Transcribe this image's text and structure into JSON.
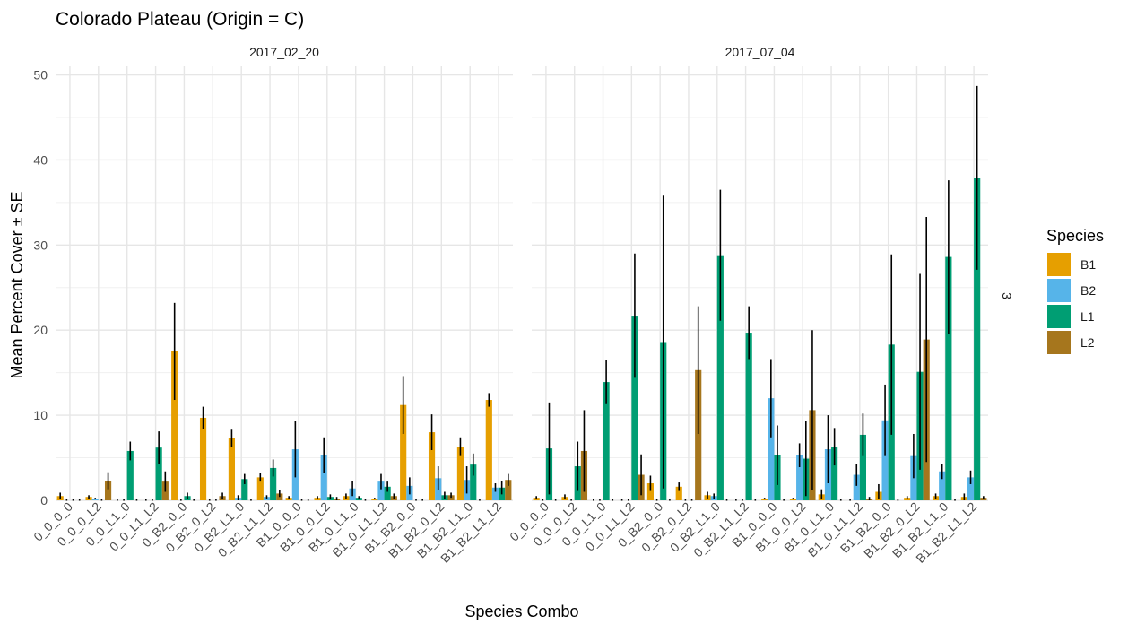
{
  "chart_data": {
    "type": "bar",
    "title": "Colorado Plateau (Origin = C)",
    "xlabel": "Species Combo",
    "ylabel": "Mean Percent Cover ± SE",
    "ylim": [
      0,
      51
    ],
    "yticks": [
      0,
      10,
      20,
      30,
      40,
      50
    ],
    "grid": true,
    "legend": {
      "title": "Species",
      "position": "right"
    },
    "facet_row_label": "3",
    "series_names": [
      "B1",
      "B2",
      "L1",
      "L2"
    ],
    "colors": {
      "B1": "#E69F00",
      "B2": "#56B4E9",
      "L1": "#009E73",
      "L2": "#A6761D"
    },
    "categories": [
      "0_0_0_0",
      "0_0_0_L2",
      "0_0_L1_0",
      "0_0_L1_L2",
      "0_B2_0_0",
      "0_B2_0_L2",
      "0_B2_L1_0",
      "0_B2_L1_L2",
      "B1_0_0_0",
      "B1_0_0_L2",
      "B1_0_L1_0",
      "B1_0_L1_L2",
      "B1_B2_0_0",
      "B1_B2_0_L2",
      "B1_B2_L1_0",
      "B1_B2_L1_L2"
    ],
    "panels": [
      {
        "label": "2017_02_20",
        "values": [
          [
            0.5,
            0,
            0,
            0
          ],
          [
            0.4,
            0.2,
            0,
            2.3
          ],
          [
            0,
            0,
            5.8,
            0
          ],
          [
            0,
            0,
            6.2,
            2.2
          ],
          [
            17.5,
            0,
            0.5,
            0
          ],
          [
            9.7,
            0,
            0,
            0.5
          ],
          [
            7.3,
            0.3,
            2.5,
            0
          ],
          [
            2.7,
            0.4,
            3.8,
            0.8
          ],
          [
            0.3,
            6.0,
            0,
            0
          ],
          [
            0.3,
            5.3,
            0.4,
            0.2
          ],
          [
            0.5,
            1.4,
            0.3,
            0
          ],
          [
            0.2,
            2.2,
            1.6,
            0.5
          ],
          [
            11.2,
            1.7,
            0,
            0
          ],
          [
            8.0,
            2.6,
            0.6,
            0.6
          ],
          [
            6.3,
            2.4,
            4.2,
            0
          ],
          [
            11.8,
            1.5,
            1.5,
            2.4
          ]
        ],
        "errors": [
          [
            0.4,
            0,
            0,
            0
          ],
          [
            0.2,
            0.1,
            0,
            1.0
          ],
          [
            0,
            0,
            1.1,
            0
          ],
          [
            0,
            0,
            1.9,
            1.2
          ],
          [
            5.7,
            0,
            0.4,
            0
          ],
          [
            1.3,
            0,
            0,
            0.4
          ],
          [
            1.0,
            0.3,
            0.6,
            0
          ],
          [
            0.5,
            0.2,
            1.0,
            0.4
          ],
          [
            0.2,
            3.3,
            0,
            0
          ],
          [
            0.2,
            2.1,
            0.3,
            0.2
          ],
          [
            0.3,
            0.9,
            0.2,
            0
          ],
          [
            0.1,
            0.9,
            0.6,
            0.3
          ],
          [
            3.4,
            1.0,
            0,
            0
          ],
          [
            2.1,
            1.4,
            0.4,
            0.3
          ],
          [
            1.1,
            1.6,
            1.3,
            0
          ],
          [
            0.8,
            0.5,
            0.8,
            0.7
          ]
        ]
      },
      {
        "label": "2017_07_04",
        "values": [
          [
            0.3,
            0,
            6.1,
            0
          ],
          [
            0.4,
            0,
            4.0,
            5.8
          ],
          [
            0,
            0,
            13.9,
            0
          ],
          [
            0,
            0,
            21.7,
            3.0
          ],
          [
            2.0,
            0,
            18.6,
            0
          ],
          [
            1.6,
            0,
            0,
            15.3
          ],
          [
            0.6,
            0.5,
            28.8,
            0
          ],
          [
            0,
            0,
            19.7,
            0
          ],
          [
            0.2,
            12.0,
            5.3,
            0
          ],
          [
            0.2,
            5.3,
            4.9,
            10.6
          ],
          [
            0.7,
            6.0,
            6.3,
            0
          ],
          [
            0,
            3.0,
            7.7,
            0.2
          ],
          [
            1.0,
            9.4,
            18.3,
            0
          ],
          [
            0.3,
            5.2,
            15.1,
            18.9
          ],
          [
            0.5,
            3.4,
            28.6,
            0
          ],
          [
            0.4,
            2.7,
            37.9,
            0.3
          ]
        ],
        "errors": [
          [
            0.2,
            0,
            5.4,
            0
          ],
          [
            0.3,
            0,
            2.9,
            4.8
          ],
          [
            0,
            0,
            2.6,
            0
          ],
          [
            0,
            0,
            7.3,
            2.4
          ],
          [
            0.9,
            0,
            17.2,
            0
          ],
          [
            0.5,
            0,
            0,
            7.5
          ],
          [
            0.4,
            0.3,
            7.7,
            0
          ],
          [
            0,
            0,
            3.1,
            0
          ],
          [
            0.1,
            4.6,
            3.5,
            0
          ],
          [
            0.1,
            1.4,
            4.4,
            9.4
          ],
          [
            0.6,
            4.0,
            2.2,
            0
          ],
          [
            0,
            1.3,
            2.5,
            0.2
          ],
          [
            0.9,
            4.2,
            10.6,
            0
          ],
          [
            0.2,
            2.6,
            11.5,
            14.4
          ],
          [
            0.3,
            0.9,
            9.0,
            0
          ],
          [
            0.4,
            0.8,
            10.8,
            0.2
          ]
        ]
      }
    ]
  }
}
